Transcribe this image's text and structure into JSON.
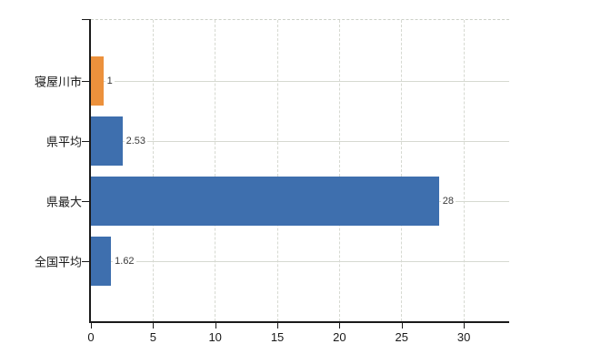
{
  "chart_data": {
    "type": "bar",
    "orientation": "horizontal",
    "title": "",
    "xlabel": "",
    "ylabel": "",
    "categories": [
      "寝屋川市",
      "県平均",
      "県最大",
      "全国平均"
    ],
    "values": [
      1,
      2.53,
      28,
      1.62
    ],
    "value_labels": [
      "1",
      "2.53",
      "28",
      "1.62"
    ],
    "bar_colors": [
      "#ec913c",
      "#3e6fae",
      "#3e6fae",
      "#3e6fae"
    ],
    "xlim": [
      0,
      33.65
    ],
    "xticks": [
      0,
      5,
      10,
      15,
      20,
      25,
      30
    ],
    "grid": true,
    "legend": false,
    "colors": {
      "accent_orange": "#ec913c",
      "accent_blue": "#3e6fae",
      "gridline": "#d6d9d1",
      "axis": "#1a1a1a",
      "tick_label": "#1a1a1a",
      "value_label": "#3a3a3a",
      "background": "#ffffff"
    }
  }
}
